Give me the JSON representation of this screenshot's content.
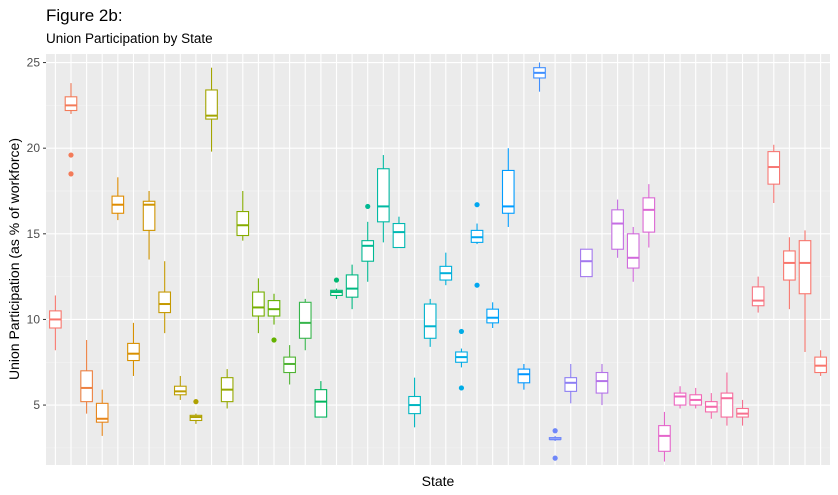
{
  "title": "Figure 2b:",
  "subtitle": "Union Participation by State",
  "chart_data": {
    "type": "boxplot",
    "xlabel": "State",
    "ylabel": "Union Participation (as % of workforce)",
    "ylim": [
      1.5,
      25.5
    ],
    "yticks": [
      5,
      10,
      15,
      20,
      25
    ],
    "grid": true,
    "legend": "none",
    "x_tick_labels_shown": false,
    "series": [
      {
        "color": "#F8766D",
        "min": 8.2,
        "q1": 9.5,
        "median": 10.0,
        "q3": 10.5,
        "max": 11.4,
        "outliers": []
      },
      {
        "color": "#F37B59",
        "min": 22.0,
        "q1": 22.2,
        "median": 22.5,
        "q3": 23.0,
        "max": 23.8,
        "outliers": [
          19.6,
          18.5
        ]
      },
      {
        "color": "#ED8141",
        "min": 4.5,
        "q1": 5.2,
        "median": 6.0,
        "q3": 7.0,
        "max": 8.8,
        "outliers": []
      },
      {
        "color": "#E7861B",
        "min": 3.2,
        "q1": 4.0,
        "median": 4.2,
        "q3": 5.1,
        "max": 5.9,
        "outliers": []
      },
      {
        "color": "#DF8C00",
        "min": 15.8,
        "q1": 16.2,
        "median": 16.7,
        "q3": 17.2,
        "max": 18.3,
        "outliers": []
      },
      {
        "color": "#D89000",
        "min": 6.7,
        "q1": 7.6,
        "median": 8.0,
        "q3": 8.6,
        "max": 9.8,
        "outliers": []
      },
      {
        "color": "#CF9400",
        "min": 13.5,
        "q1": 15.2,
        "median": 16.7,
        "q3": 16.9,
        "max": 17.5,
        "outliers": []
      },
      {
        "color": "#C59900",
        "min": 9.2,
        "q1": 10.4,
        "median": 10.9,
        "q3": 11.6,
        "max": 13.4,
        "outliers": []
      },
      {
        "color": "#BB9D00",
        "min": 5.3,
        "q1": 5.6,
        "median": 5.8,
        "q3": 6.1,
        "max": 6.7,
        "outliers": []
      },
      {
        "color": "#AFA100",
        "min": 3.9,
        "q1": 4.1,
        "median": 4.3,
        "q3": 4.4,
        "max": 4.5,
        "outliers": [
          5.2
        ]
      },
      {
        "color": "#A3A500",
        "min": 19.8,
        "q1": 21.7,
        "median": 21.9,
        "q3": 23.4,
        "max": 24.7,
        "outliers": []
      },
      {
        "color": "#96A900",
        "min": 4.8,
        "q1": 5.2,
        "median": 5.9,
        "q3": 6.6,
        "max": 7.1,
        "outliers": []
      },
      {
        "color": "#87AC00",
        "min": 14.6,
        "q1": 14.9,
        "median": 15.5,
        "q3": 16.3,
        "max": 17.5,
        "outliers": []
      },
      {
        "color": "#76AF00",
        "min": 9.2,
        "q1": 10.2,
        "median": 10.7,
        "q3": 11.6,
        "max": 12.4,
        "outliers": []
      },
      {
        "color": "#64B200",
        "min": 9.7,
        "q1": 10.2,
        "median": 10.6,
        "q3": 11.1,
        "max": 11.5,
        "outliers": [
          8.8
        ]
      },
      {
        "color": "#4FB433",
        "min": 6.2,
        "q1": 6.9,
        "median": 7.4,
        "q3": 7.8,
        "max": 8.5,
        "outliers": []
      },
      {
        "color": "#36B54B",
        "min": 8.2,
        "q1": 8.9,
        "median": 9.8,
        "q3": 11.0,
        "max": 11.2,
        "outliers": []
      },
      {
        "color": "#00B65E",
        "min": 4.3,
        "q1": 4.3,
        "median": 5.2,
        "q3": 5.9,
        "max": 6.4,
        "outliers": []
      },
      {
        "color": "#00B771",
        "min": 11.2,
        "q1": 11.4,
        "median": 11.6,
        "q3": 11.7,
        "max": 11.8,
        "outliers": [
          12.3
        ]
      },
      {
        "color": "#00B882",
        "min": 10.6,
        "q1": 11.3,
        "median": 11.8,
        "q3": 12.6,
        "max": 13.2,
        "outliers": []
      },
      {
        "color": "#00B993",
        "min": 12.2,
        "q1": 13.4,
        "median": 14.3,
        "q3": 14.6,
        "max": 15.7,
        "outliers": [
          16.6
        ]
      },
      {
        "color": "#00B9A3",
        "min": 14.5,
        "q1": 15.7,
        "median": 16.6,
        "q3": 18.8,
        "max": 19.6,
        "outliers": []
      },
      {
        "color": "#00B8B2",
        "min": 14.2,
        "q1": 14.2,
        "median": 15.1,
        "q3": 15.6,
        "max": 16.0,
        "outliers": []
      },
      {
        "color": "#00B6C1",
        "min": 3.7,
        "q1": 4.5,
        "median": 5.0,
        "q3": 5.5,
        "max": 6.6,
        "outliers": []
      },
      {
        "color": "#00B3CE",
        "min": 8.4,
        "q1": 8.9,
        "median": 9.6,
        "q3": 10.9,
        "max": 11.2,
        "outliers": []
      },
      {
        "color": "#00B0DB",
        "min": 12.0,
        "q1": 12.3,
        "median": 12.7,
        "q3": 13.1,
        "max": 13.9,
        "outliers": []
      },
      {
        "color": "#00ACE6",
        "min": 7.2,
        "q1": 7.5,
        "median": 7.8,
        "q3": 8.1,
        "max": 8.3,
        "outliers": [
          9.3,
          6.0
        ]
      },
      {
        "color": "#00A7F0",
        "min": 14.4,
        "q1": 14.5,
        "median": 14.8,
        "q3": 15.2,
        "max": 15.6,
        "outliers": [
          16.7,
          12.0
        ]
      },
      {
        "color": "#00A2F9",
        "min": 9.5,
        "q1": 9.8,
        "median": 10.1,
        "q3": 10.6,
        "max": 11.0,
        "outliers": []
      },
      {
        "color": "#009CFF",
        "min": 15.4,
        "q1": 16.2,
        "median": 16.6,
        "q3": 18.7,
        "max": 20.0,
        "outliers": []
      },
      {
        "color": "#0096FF",
        "min": 5.9,
        "q1": 6.3,
        "median": 6.8,
        "q3": 7.1,
        "max": 7.4,
        "outliers": []
      },
      {
        "color": "#3F8FFF",
        "min": 23.3,
        "q1": 24.1,
        "median": 24.4,
        "q3": 24.7,
        "max": 25.0,
        "outliers": []
      },
      {
        "color": "#6F87F9",
        "min": 2.9,
        "q1": 3.0,
        "median": 3.0,
        "q3": 3.1,
        "max": 3.2,
        "outliers": [
          3.5,
          1.9
        ]
      },
      {
        "color": "#8D7FF3",
        "min": 5.1,
        "q1": 5.8,
        "median": 6.3,
        "q3": 6.6,
        "max": 7.4,
        "outliers": []
      },
      {
        "color": "#A378EE",
        "min": 12.5,
        "q1": 12.5,
        "median": 13.4,
        "q3": 14.1,
        "max": 14.1,
        "outliers": []
      },
      {
        "color": "#B473E9",
        "min": 5.0,
        "q1": 5.7,
        "median": 6.4,
        "q3": 6.9,
        "max": 7.4,
        "outliers": []
      },
      {
        "color": "#C46EE3",
        "min": 13.6,
        "q1": 14.1,
        "median": 15.6,
        "q3": 16.4,
        "max": 17.0,
        "outliers": []
      },
      {
        "color": "#D16ADC",
        "min": 12.2,
        "q1": 13.0,
        "median": 13.6,
        "q3": 15.0,
        "max": 15.4,
        "outliers": []
      },
      {
        "color": "#DC67D4",
        "min": 14.2,
        "q1": 15.1,
        "median": 16.4,
        "q3": 17.1,
        "max": 17.9,
        "outliers": []
      },
      {
        "color": "#E566CB",
        "min": 1.7,
        "q1": 2.3,
        "median": 3.2,
        "q3": 3.8,
        "max": 4.6,
        "outliers": []
      },
      {
        "color": "#EC66C1",
        "min": 4.8,
        "q1": 5.0,
        "median": 5.5,
        "q3": 5.7,
        "max": 6.1,
        "outliers": []
      },
      {
        "color": "#F167B6",
        "min": 4.8,
        "q1": 5.0,
        "median": 5.3,
        "q3": 5.6,
        "max": 6.0,
        "outliers": []
      },
      {
        "color": "#F469AA",
        "min": 4.2,
        "q1": 4.6,
        "median": 4.9,
        "q3": 5.2,
        "max": 5.7,
        "outliers": []
      },
      {
        "color": "#F66C9D",
        "min": 3.8,
        "q1": 4.3,
        "median": 5.4,
        "q3": 5.7,
        "max": 6.9,
        "outliers": []
      },
      {
        "color": "#F7708F",
        "min": 3.8,
        "q1": 4.3,
        "median": 4.5,
        "q3": 4.8,
        "max": 5.3,
        "outliers": []
      },
      {
        "color": "#F77581",
        "min": 10.4,
        "q1": 10.8,
        "median": 11.1,
        "q3": 11.9,
        "max": 12.5,
        "outliers": []
      },
      {
        "color": "#F77874",
        "min": 16.8,
        "q1": 17.9,
        "median": 18.9,
        "q3": 19.8,
        "max": 20.2,
        "outliers": []
      },
      {
        "color": "#F8766D",
        "min": 10.6,
        "q1": 12.3,
        "median": 13.3,
        "q3": 14.0,
        "max": 14.8,
        "outliers": []
      },
      {
        "color": "#F8766D",
        "min": 8.1,
        "q1": 11.5,
        "median": 13.3,
        "q3": 14.6,
        "max": 15.2,
        "outliers": []
      },
      {
        "color": "#F8766D",
        "min": 6.7,
        "q1": 6.9,
        "median": 7.3,
        "q3": 7.8,
        "max": 8.2,
        "outliers": []
      }
    ]
  }
}
